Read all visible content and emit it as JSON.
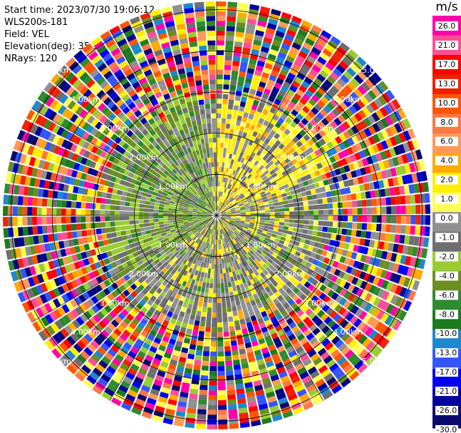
{
  "header": {
    "start_time": "Start time: 2023/07/30 19:06:12",
    "instrument": "WLS200s-181",
    "field": "Field: VEL",
    "elevation": "Elevation(deg): 35.30",
    "nrays": "NRays: 120"
  },
  "chart_data": {
    "type": "heatmap",
    "projection": "polar",
    "field": "VEL",
    "units": "m/s",
    "nrays": 120,
    "range_rings_km": [
      1.0,
      2.0,
      3.0,
      4.0,
      5.0
    ],
    "max_range_km": 5.2,
    "ring_labels": [
      "1.00km",
      "2.00km",
      "3.00km",
      "4.00km",
      "5.00km"
    ],
    "colorbar": {
      "title": "m/s",
      "ticks": [
        "26.0",
        "21.0",
        "17.0",
        "13.0",
        "10.0",
        "8.0",
        "6.0",
        "4.0",
        "2.0",
        "1.0",
        "0.0",
        "-1.0",
        "-2.0",
        "-4.0",
        "-6.0",
        "-8.0",
        "-10.0",
        "-13.0",
        "-17.0",
        "-21.0",
        "-26.0",
        "-30.0"
      ],
      "colors": [
        "#ff00aa",
        "#ff4d96",
        "#ff0000",
        "#ee2200",
        "#ff5500",
        "#ff7744",
        "#ff9955",
        "#ffaa00",
        "#ffee00",
        "#ffff55",
        "#909090",
        "#6e6e6e",
        "#99cc33",
        "#6b8e23",
        "#2e8b2e",
        "#1e7a1e",
        "#1e88cc",
        "#3355ff",
        "#0000ee",
        "#000099",
        "#0a0a6e"
      ]
    },
    "structure": {
      "clean_zone_end_km": [
        2.5,
        3.1
      ],
      "noisy_beyond_km": 3.2,
      "positive_sector_deg": [
        -130,
        -20
      ],
      "negative_sector_deg": [
        140,
        260
      ]
    }
  }
}
